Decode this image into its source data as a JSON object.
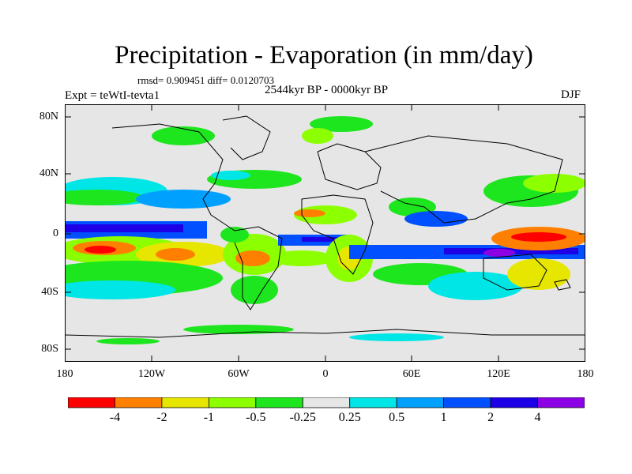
{
  "title": "Precipitation - Evaporation (in mm/day)",
  "stats": "rmsd= 0.909451 diff= 0.0120703",
  "experiment": "Expt = teWtI-tevta1",
  "period": "2544kyr BP - 0000kyr BP",
  "season": "DJF",
  "y_ticks": [
    "80N",
    "40N",
    "0",
    "40S",
    "80S"
  ],
  "x_ticks": [
    "180",
    "120W",
    "60W",
    "0",
    "60E",
    "120E",
    "180"
  ],
  "colorbar": {
    "labels": [
      "-4",
      "-2",
      "-1",
      "-0.5",
      "-0.25",
      "0.25",
      "0.5",
      "1",
      "2",
      "4"
    ],
    "colors": [
      "#ff0000",
      "#ff8000",
      "#e6e600",
      "#8cff00",
      "#1ee61e",
      "#e6e6e6",
      "#00e6e6",
      "#00a0ff",
      "#0050ff",
      "#1e00e6",
      "#8c00e6"
    ]
  }
}
